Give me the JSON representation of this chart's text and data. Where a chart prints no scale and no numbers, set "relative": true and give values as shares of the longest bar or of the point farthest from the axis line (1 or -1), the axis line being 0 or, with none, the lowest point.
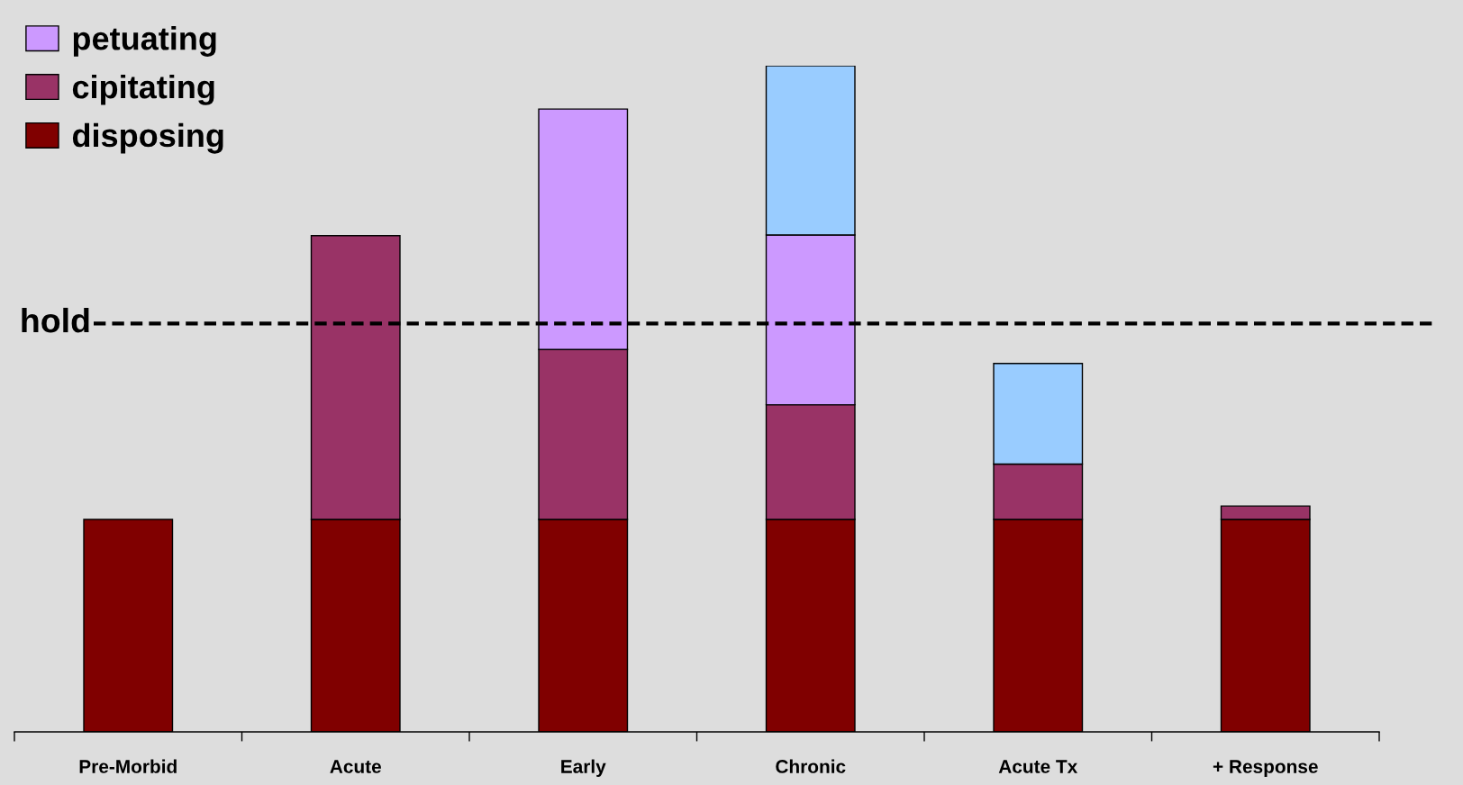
{
  "chart_data": {
    "type": "bar",
    "stacked": true,
    "relative": true,
    "legend": "top left",
    "categories": [
      "Pre-Morbid",
      "Acute",
      "Early",
      "Chronic",
      "Acute Tx",
      "+ Response"
    ],
    "series": [
      {
        "name": "disposing",
        "color": "#800000",
        "values": [
          0.319,
          0.319,
          0.319,
          0.319,
          0.319,
          0.319
        ]
      },
      {
        "name": "cipitating",
        "color": "#993366",
        "values": [
          null,
          0.426,
          0.255,
          0.172,
          0.083,
          0.02
        ]
      },
      {
        "name": "petuating",
        "color": "#cc99ff",
        "values": [
          null,
          null,
          0.361,
          0.255,
          null,
          null
        ]
      },
      {
        "color": "#99ccff",
        "values": [
          null,
          null,
          null,
          0.254,
          0.151,
          null
        ]
      }
    ],
    "ref_lines": [
      {
        "axis": "y",
        "value": 0.613,
        "label": "hold",
        "color": "#000000",
        "line_style": "dashed"
      }
    ]
  }
}
